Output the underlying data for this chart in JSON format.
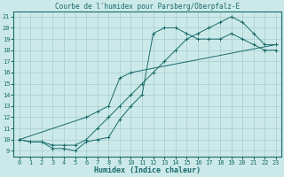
{
  "title": "Courbe de l'humidex pour Parsberg/Oberpfalz-E",
  "xlabel": "Humidex (Indice chaleur)",
  "bg_color": "#cce9e9",
  "grid_color": "#a8cccc",
  "line_color": "#1a6b6b",
  "xlim": [
    -0.5,
    23.5
  ],
  "ylim": [
    8.5,
    21.5
  ],
  "xticks": [
    0,
    1,
    2,
    3,
    4,
    5,
    6,
    7,
    8,
    9,
    10,
    11,
    12,
    13,
    14,
    15,
    16,
    17,
    18,
    19,
    20,
    21,
    22,
    23
  ],
  "yticks": [
    9,
    10,
    11,
    12,
    13,
    14,
    15,
    16,
    17,
    18,
    19,
    20,
    21
  ],
  "line1_x": [
    0,
    1,
    2,
    3,
    4,
    5,
    6,
    7,
    8,
    9,
    10,
    11,
    12,
    13,
    14,
    15,
    16,
    17,
    18,
    19,
    20,
    21,
    22,
    23
  ],
  "line1_y": [
    10,
    9.8,
    9.8,
    9.2,
    9.2,
    9.0,
    9.8,
    10,
    10.2,
    11.8,
    13.0,
    14.0,
    19.5,
    20.0,
    20.0,
    19.5,
    19.0,
    19.0,
    19.0,
    19.5,
    19.0,
    18.5,
    18.0,
    18.0
  ],
  "line2_x": [
    0,
    1,
    2,
    3,
    4,
    5,
    6,
    7,
    8,
    9,
    10,
    11,
    12,
    13,
    14,
    15,
    16,
    17,
    18,
    19,
    20,
    21,
    22,
    23
  ],
  "line2_y": [
    10,
    9.8,
    9.8,
    9.5,
    9.5,
    9.5,
    10.0,
    11.0,
    12.0,
    13.0,
    14.0,
    15.0,
    16.0,
    17.0,
    18.0,
    19.0,
    19.5,
    20.0,
    20.5,
    21.0,
    20.5,
    19.5,
    18.5,
    18.5
  ],
  "line3_x": [
    0,
    6,
    7,
    8,
    9,
    10,
    23
  ],
  "line3_y": [
    10,
    12.0,
    12.5,
    13.0,
    15.5,
    16.0,
    18.5
  ],
  "title_fontsize": 5.5,
  "tick_fontsize": 5,
  "xlabel_fontsize": 6
}
